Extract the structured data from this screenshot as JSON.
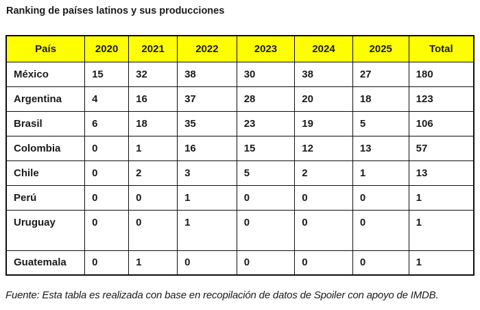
{
  "title": "Ranking de países latinos y sus producciones",
  "footer": "Fuente: Esta tabla es realizada con base en recopilación de datos de Spoiler con apoyo de IMDB.",
  "colors": {
    "header_bg": "#ffff00",
    "border": "#0d0d0d",
    "text": "#1a1a1a"
  },
  "table": {
    "headers": [
      "País",
      "2020",
      "2021",
      "2022",
      "2023",
      "2024",
      "2025",
      "Total"
    ],
    "rows": [
      {
        "country": "México",
        "values": [
          "15",
          "32",
          "38",
          "30",
          "38",
          "27",
          "180"
        ]
      },
      {
        "country": "Argentina",
        "values": [
          "4",
          "16",
          "37",
          "28",
          "20",
          "18",
          "123"
        ]
      },
      {
        "country": "Brasil",
        "values": [
          "6",
          "18",
          "35",
          "23",
          "19",
          "5",
          "106"
        ]
      },
      {
        "country": "Colombia",
        "values": [
          "0",
          "1",
          "16",
          "15",
          "12",
          "13",
          "57"
        ]
      },
      {
        "country": "Chile",
        "values": [
          "0",
          "2",
          "3",
          "5",
          "2",
          "1",
          "13"
        ]
      },
      {
        "country": "Perú",
        "values": [
          "0",
          "0",
          "1",
          "0",
          "0",
          "0",
          "1"
        ]
      },
      {
        "country": "Uruguay",
        "values": [
          "0",
          "0",
          "1",
          "0",
          "0",
          "0",
          "1"
        ]
      },
      {
        "country": "Guatemala",
        "values": [
          "0",
          "1",
          "0",
          "0",
          "0",
          "0",
          "1"
        ]
      }
    ]
  },
  "chart_data": {
    "type": "table",
    "title": "Ranking de países latinos y sus producciones",
    "columns": [
      "País",
      "2020",
      "2021",
      "2022",
      "2023",
      "2024",
      "2025",
      "Total"
    ],
    "rows": [
      [
        "México",
        15,
        32,
        38,
        30,
        38,
        27,
        180
      ],
      [
        "Argentina",
        4,
        16,
        37,
        28,
        20,
        18,
        123
      ],
      [
        "Brasil",
        6,
        18,
        35,
        23,
        19,
        5,
        106
      ],
      [
        "Colombia",
        0,
        1,
        16,
        15,
        12,
        13,
        57
      ],
      [
        "Chile",
        0,
        2,
        3,
        5,
        2,
        1,
        13
      ],
      [
        "Perú",
        0,
        0,
        1,
        0,
        0,
        0,
        1
      ],
      [
        "Uruguay",
        0,
        0,
        1,
        0,
        0,
        0,
        1
      ],
      [
        "Guatemala",
        0,
        1,
        0,
        0,
        0,
        0,
        1
      ]
    ],
    "source": "Fuente: Esta tabla es realizada con base en recopilación de datos de Spoiler con apoyo de IMDB.",
    "layout": {
      "header_background": "#ffff00",
      "grid": true
    }
  }
}
